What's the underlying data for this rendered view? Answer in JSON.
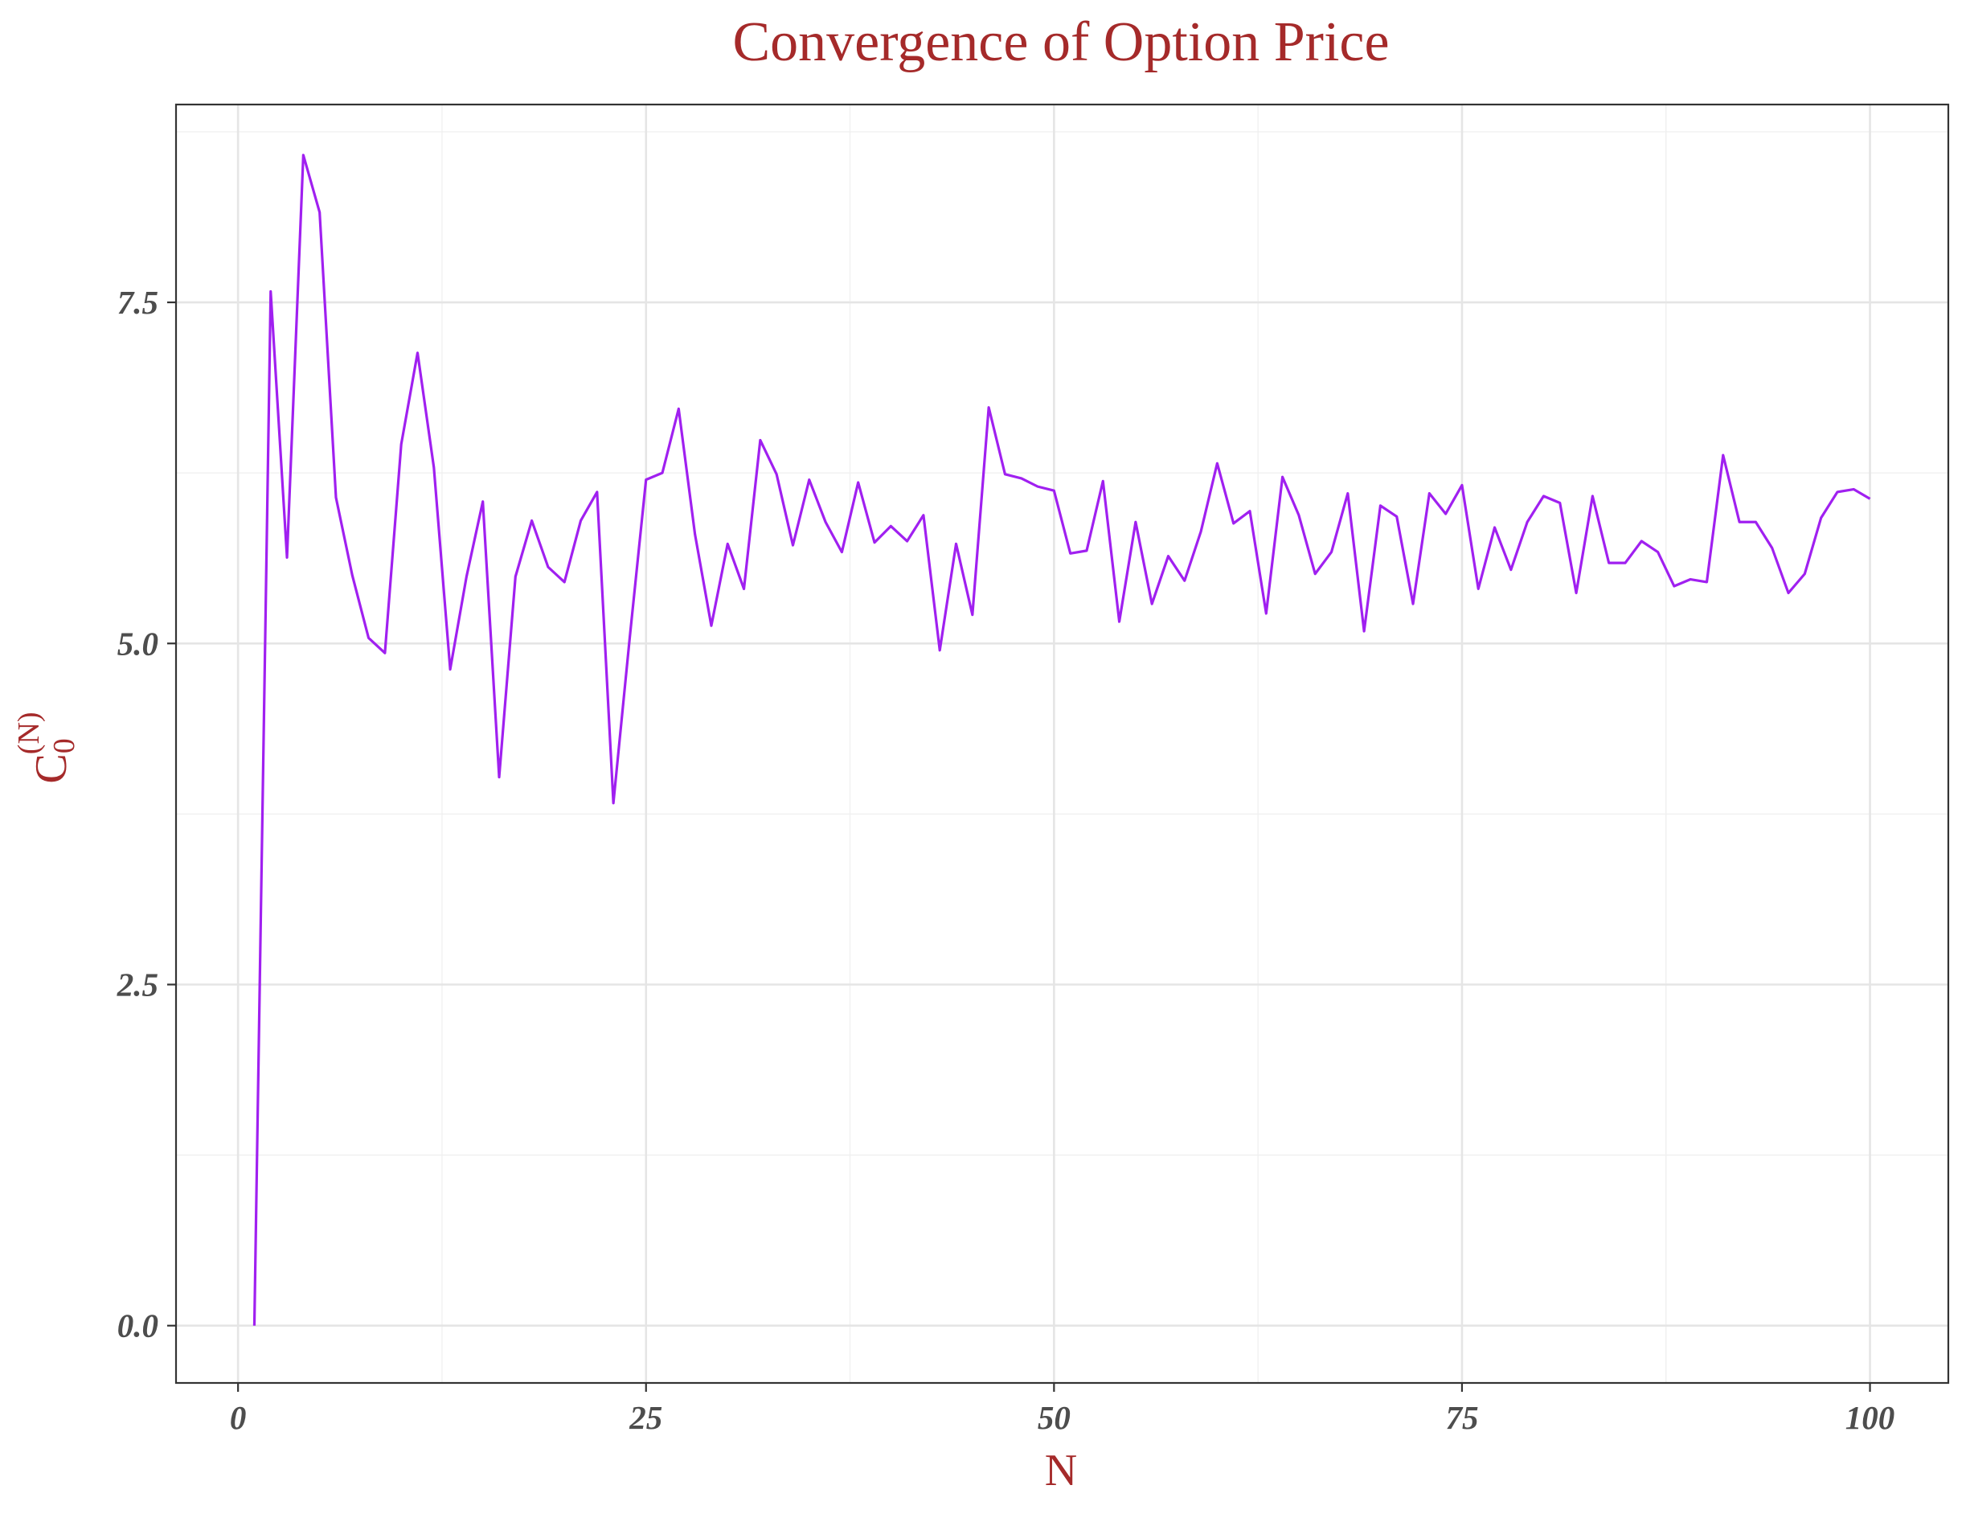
{
  "colors": {
    "title": "#A52A2A",
    "axis_title": "#A52A2A",
    "line": "#A020F0",
    "grid_major": "#E5E5E5",
    "grid_minor": "#F0F0F0",
    "panel_border": "#333333",
    "tick_label": "#4D4D4D",
    "background": "#FFFFFF"
  },
  "chart_data": {
    "type": "line",
    "title": "Convergence of Option Price",
    "xlabel": "N",
    "ylabel": {
      "base": "C",
      "subscript": "0",
      "superscript": "(N)"
    },
    "xlim": [
      -3.8,
      104.8
    ],
    "ylim": [
      -0.42,
      8.95
    ],
    "x_ticks": [
      0,
      25,
      50,
      75,
      100
    ],
    "x_tick_labels": [
      "0",
      "25",
      "50",
      "75",
      "100"
    ],
    "y_ticks": [
      0.0,
      2.5,
      5.0,
      7.5
    ],
    "y_tick_labels": [
      "0.0",
      "2.5",
      "5.0",
      "7.5"
    ],
    "x_minor_ticks": [
      12.5,
      37.5,
      62.5,
      87.5
    ],
    "y_minor_ticks": [
      1.25,
      3.75,
      6.25,
      8.75
    ],
    "grid": true,
    "legend": "none",
    "series": [
      {
        "x": [
          1,
          2,
          3,
          4,
          5,
          6,
          7,
          8,
          9,
          10,
          11,
          12,
          13,
          14,
          15,
          16,
          17,
          18,
          19,
          20,
          21,
          22,
          23,
          24,
          25,
          26,
          27,
          28,
          29,
          30,
          31,
          32,
          33,
          34,
          35,
          36,
          37,
          38,
          39,
          40,
          41,
          42,
          43,
          44,
          45,
          46,
          47,
          48,
          49,
          50,
          51,
          52,
          53,
          54,
          55,
          56,
          57,
          58,
          59,
          60,
          61,
          62,
          63,
          64,
          65,
          66,
          67,
          68,
          69,
          70,
          71,
          72,
          73,
          74,
          75,
          76,
          77,
          78,
          79,
          80,
          81,
          82,
          83,
          84,
          85,
          86,
          87,
          88,
          89,
          90,
          91,
          92,
          93,
          94,
          95,
          96,
          97,
          98,
          99,
          100
        ],
        "values": [
          0.0,
          7.58,
          5.63,
          8.58,
          8.16,
          6.07,
          5.5,
          5.04,
          4.93,
          6.46,
          7.13,
          6.29,
          4.81,
          5.49,
          6.04,
          4.02,
          5.49,
          5.9,
          5.56,
          5.45,
          5.9,
          6.11,
          3.83,
          5.04,
          6.2,
          6.25,
          6.72,
          5.8,
          5.13,
          5.73,
          5.4,
          6.49,
          6.24,
          5.72,
          6.2,
          5.89,
          5.67,
          6.18,
          5.74,
          5.86,
          5.75,
          5.94,
          4.95,
          5.73,
          5.21,
          6.73,
          6.24,
          6.21,
          6.15,
          6.12,
          5.66,
          5.68,
          6.19,
          5.16,
          5.89,
          5.29,
          5.64,
          5.46,
          5.82,
          6.32,
          5.88,
          5.97,
          5.22,
          6.22,
          5.94,
          5.51,
          5.67,
          6.1,
          5.09,
          6.01,
          5.93,
          5.29,
          6.1,
          5.95,
          6.16,
          5.4,
          5.85,
          5.54,
          5.89,
          6.08,
          6.03,
          5.37,
          6.08,
          5.59,
          5.59,
          5.75,
          5.67,
          5.42,
          5.47,
          5.45,
          6.38,
          5.89,
          5.89,
          5.7,
          5.37,
          5.51,
          5.92,
          6.11,
          6.13,
          6.06
        ]
      }
    ]
  }
}
